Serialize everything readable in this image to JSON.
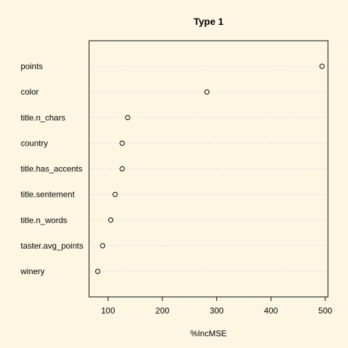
{
  "chart_data": {
    "type": "scatter",
    "subtype": "dotchart",
    "title": "Type 1",
    "xlabel": "%IncMSE",
    "ylabel": "",
    "categories": [
      "points",
      "color",
      "title.n_chars",
      "country",
      "title.has_accents",
      "title.sentement",
      "title.n_words",
      "taster.avg_points",
      "winery"
    ],
    "values": [
      494,
      282,
      136,
      126,
      126,
      113,
      105,
      90,
      81
    ],
    "xlim": [
      65,
      505
    ],
    "xticks": [
      100,
      200,
      300,
      400,
      500
    ],
    "xtick_labels": [
      "100",
      "200",
      "300",
      "400",
      "500"
    ],
    "grid": "horizontal dotted guide lines per row",
    "colors": {
      "background": "#fdf6e3",
      "guide": "#c8c8c8",
      "point_stroke": "#000000",
      "axis": "#000000"
    }
  }
}
